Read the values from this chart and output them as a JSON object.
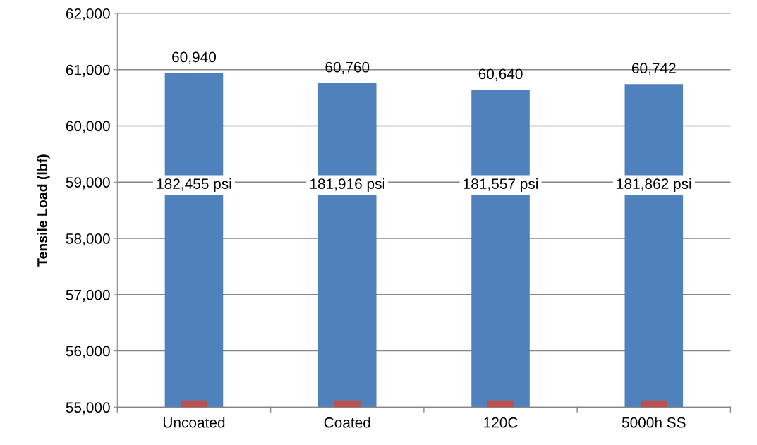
{
  "chart_data": {
    "type": "bar",
    "ylabel": "Tensile Load (lbf)",
    "categories": [
      "Uncoated",
      "Coated",
      "120C",
      "5000h SS"
    ],
    "series": [
      {
        "color": "#4f81bd",
        "values": [
          60940,
          60760,
          60640,
          60742
        ],
        "value_labels": [
          "60,940",
          "60,760",
          "60,640",
          "60,742"
        ]
      },
      {
        "color": "#c0504d",
        "values": [
          55120,
          55120,
          55120,
          55120
        ]
      }
    ],
    "annotations": [
      "182,455 psi",
      "181,916 psi",
      "181,557 psi",
      "181,862 psi"
    ],
    "ylim": [
      55000,
      62000
    ],
    "yticks": [
      {
        "value": 55000,
        "label": "55,000"
      },
      {
        "value": 56000,
        "label": "56,000"
      },
      {
        "value": 57000,
        "label": "57,000"
      },
      {
        "value": 58000,
        "label": "58,000"
      },
      {
        "value": 59000,
        "label": "59,000"
      },
      {
        "value": 60000,
        "label": "60,000"
      },
      {
        "value": 61000,
        "label": "61,000"
      },
      {
        "value": 62000,
        "label": "62,000"
      }
    ],
    "grid": "y",
    "legend": false
  }
}
